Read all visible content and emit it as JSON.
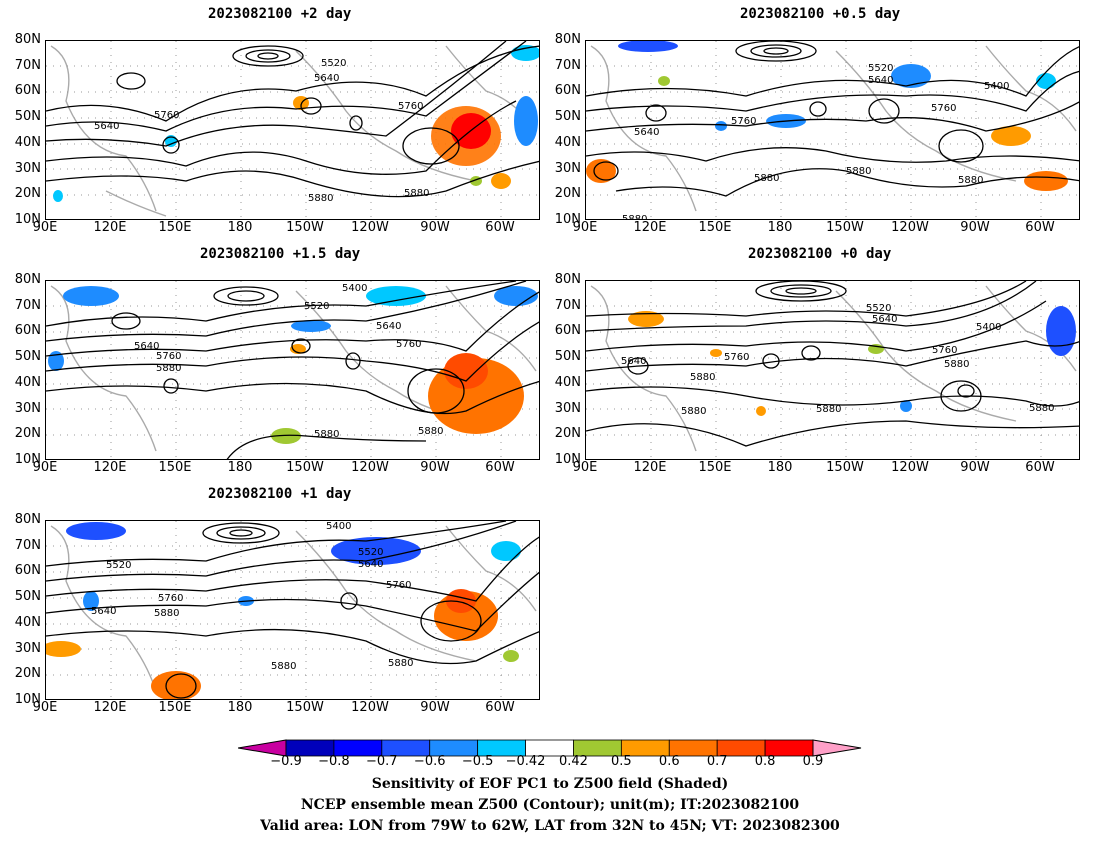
{
  "panels": [
    {
      "title": "2023082100  +2 day",
      "contour_labels": [
        "5520",
        "5640",
        "5640",
        "5760",
        "5760",
        "5880",
        "5880"
      ]
    },
    {
      "title": "2023082100  +0.5 day",
      "contour_labels": [
        "5520",
        "5640",
        "5400",
        "5640",
        "5760",
        "5760",
        "5880",
        "5880",
        "5880",
        "5880"
      ]
    },
    {
      "title": "2023082100  +1.5 day",
      "contour_labels": [
        "5400",
        "5520",
        "5640",
        "5640",
        "5760",
        "5760",
        "5880",
        "5880",
        "5880"
      ]
    },
    {
      "title": "2023082100  +0 day",
      "contour_labels": [
        "5520",
        "5640",
        "5400",
        "5640",
        "5760",
        "5760",
        "5880",
        "5880",
        "5880",
        "5880",
        "5880"
      ]
    },
    {
      "title": "2023082100  +1 day",
      "contour_labels": [
        "5400",
        "5520",
        "5640",
        "5520",
        "5640",
        "5760",
        "5760",
        "5880",
        "5880",
        "5880"
      ]
    }
  ],
  "lat_labels": [
    "80N",
    "70N",
    "60N",
    "50N",
    "40N",
    "30N",
    "20N",
    "10N"
  ],
  "lon_labels": [
    "90E",
    "120E",
    "150E",
    "180",
    "150W",
    "120W",
    "90W",
    "60W"
  ],
  "colorbar": {
    "ticks": [
      "−0.9",
      "−0.8",
      "−0.7",
      "−0.6",
      "−0.5",
      "−0.42",
      "0.42",
      "0.5",
      "0.6",
      "0.7",
      "0.8",
      "0.9"
    ],
    "colors": [
      "#0000bb",
      "#0000ff",
      "#1e50ff",
      "#1e8cff",
      "#00c8ff",
      "#ffffff",
      "#a0c832",
      "#ff9b00",
      "#ff7300",
      "#ff4b00",
      "#ff0000"
    ],
    "low_arrow_color": "#c800a0",
    "high_arrow_color": "#ffa0c8"
  },
  "caption": {
    "line1": "Sensitivity of EOF PC1 to Z500 field (Shaded)",
    "line2": "NCEP ensemble mean Z500 (Contour); unit(m); IT:2023082100",
    "line3": "Valid area: LON from 79W to 62W, LAT from 32N to 45N; VT: 2023082300"
  }
}
